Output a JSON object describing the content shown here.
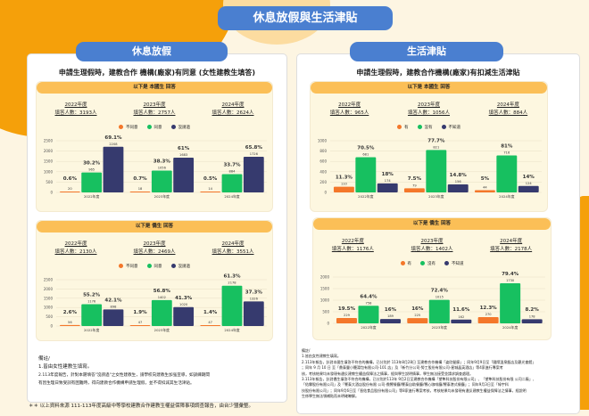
{
  "title": "休息放假與生活津貼",
  "colors": {
    "orange": "#f4772a",
    "green": "#17c060",
    "navy": "#363a6e"
  },
  "left": {
    "section": "休息放假",
    "question": "申請生理假時，建教合作 機構(廠家)有同意 (女性建教生填答)",
    "legend": [
      "不同意",
      "同意",
      "沒請過"
    ]
  },
  "right": {
    "section": "生活津貼",
    "question": "申請生理假時，建教合作機構(廠家)有扣減生活津貼",
    "legend": [
      "有",
      "沒有",
      "不知道"
    ]
  },
  "chart_data": [
    {
      "type": "bar",
      "panel_title": "以下是 本國生 回答",
      "legend": [
        "不同意",
        "同意",
        "沒請過"
      ],
      "ylim": [
        0,
        2500
      ],
      "yticks": [
        "0",
        "500",
        "1000",
        "1500",
        "2000",
        "2500"
      ],
      "groups": [
        {
          "year": "2022年度",
          "respondents": "填答人數：3193人",
          "xlabel": "2022年度",
          "values": [
            20,
            965,
            2208
          ],
          "labels": [
            "20",
            "965",
            "2208"
          ],
          "pcts": [
            "0.6%",
            "30.2%",
            "69.1%"
          ]
        },
        {
          "year": "2023年度",
          "respondents": "填答人數：2757人",
          "xlabel": "2023年度",
          "values": [
            18,
            1056,
            1683
          ],
          "labels": [
            "18",
            "1056",
            "1683"
          ],
          "pcts": [
            "0.7%",
            "38.3%",
            "61%"
          ]
        },
        {
          "year": "2024年度",
          "respondents": "填答人數：2624人",
          "xlabel": "2024年度",
          "values": [
            14,
            884,
            1726
          ],
          "labels": [
            "14",
            "884",
            "1726"
          ],
          "pcts": [
            "0.5%",
            "33.7%",
            "65.8%"
          ]
        }
      ]
    },
    {
      "type": "bar",
      "panel_title": "以下是 僑生 回答",
      "legend": [
        "不同意",
        "同意",
        "沒請過"
      ],
      "ylim": [
        0,
        2500
      ],
      "yticks": [
        "0",
        "500",
        "1000",
        "1500",
        "2000",
        "2500"
      ],
      "groups": [
        {
          "year": "2022年度",
          "respondents": "填答人數：2130人",
          "xlabel": "2022年度",
          "values": [
            56,
            1176,
            898
          ],
          "labels": [
            "56",
            "1176",
            "898"
          ],
          "pcts": [
            "2.6%",
            "55.2%",
            "42.1%"
          ]
        },
        {
          "year": "2023年度",
          "respondents": "填答人數：2469人",
          "xlabel": "2023年度",
          "values": [
            47,
            1402,
            1020
          ],
          "labels": [
            "47",
            "1402",
            "1020"
          ],
          "pcts": [
            "1.9%",
            "56.8%",
            "41.3%"
          ]
        },
        {
          "year": "2024年度",
          "respondents": "填答人數：3551人",
          "xlabel": "2024年度",
          "values": [
            47,
            2178,
            1326
          ],
          "labels": [
            "47",
            "2178",
            "1326"
          ],
          "pcts": [
            "1.4%",
            "61.3%",
            "37.3%"
          ]
        }
      ]
    },
    {
      "type": "bar",
      "panel_title": "以下是 本國生 回答",
      "legend": [
        "有",
        "沒有",
        "不知道"
      ],
      "ylim": [
        0,
        1000
      ],
      "yticks": [
        "0",
        "200",
        "400",
        "600",
        "800",
        "1000"
      ],
      "groups": [
        {
          "year": "2022年度",
          "respondents": "填答人數：965人",
          "xlabel": "2022年度",
          "values": [
            110,
            681,
            174
          ],
          "labels": [
            "110",
            "681",
            "174"
          ],
          "pcts": [
            "11.3%",
            "70.5%",
            "18%"
          ]
        },
        {
          "year": "2023年度",
          "respondents": "填答人數：1056人",
          "xlabel": "2023年度",
          "values": [
            79,
            821,
            156
          ],
          "labels": [
            "79",
            "821",
            "156"
          ],
          "pcts": [
            "7.5%",
            "77.7%",
            "14.8%"
          ]
        },
        {
          "year": "2024年度",
          "respondents": "填答人數：884人",
          "xlabel": "2024年度",
          "values": [
            44,
            716,
            124
          ],
          "labels": [
            "44",
            "716",
            "124"
          ],
          "pcts": [
            "5%",
            "81%",
            "14%"
          ]
        }
      ]
    },
    {
      "type": "bar",
      "panel_title": "以下是 僑生 回答",
      "legend": [
        "有",
        "沒有",
        "不知道"
      ],
      "ylim": [
        0,
        2000
      ],
      "yticks": [
        "0",
        "500",
        "1000",
        "1500",
        "2000"
      ],
      "groups": [
        {
          "year": "2022年度",
          "respondents": "填答人數：1176人",
          "xlabel": "2022年度",
          "values": [
            229,
            758,
            189
          ],
          "labels": [
            "229",
            "758",
            "189"
          ],
          "pcts": [
            "19.5%",
            "64.4%",
            "16%"
          ]
        },
        {
          "year": "2023年度",
          "respondents": "填答人數：1402人",
          "xlabel": "2023年度",
          "values": [
            225,
            1015,
            162
          ],
          "labels": [
            "225",
            "1015",
            "162"
          ],
          "pcts": [
            "16%",
            "72.4%",
            "11.6%"
          ]
        },
        {
          "year": "2024年度",
          "respondents": "填答人數：2178人",
          "xlabel": "2024年度",
          "values": [
            270,
            1730,
            178
          ],
          "labels": [
            "270",
            "1730",
            "178"
          ],
          "pcts": [
            "12.3%",
            "79.4%",
            "8.2%"
          ]
        }
      ]
    }
  ],
  "left_notes": [
    "備註/",
    "1.皆由女性建教生填寫。",
    "2.113年度報告，針對本題填答\"沒請過\"之女性建教生，請學校向建教生加強宣導，如訓練期間",
    "有因生理日致受訓有困難時，得向建教合作機構申請生理假，並不得扣減其生活津貼。"
  ],
  "right_notes": [
    "備註/",
    "1.皆由女性建教生填寫。",
    "2.113年報告，針對本國生填答不符合的機構，已分別於 113年8月28日 至建教合作機構「姿欣髮廊」；同年9月9日至「國際溫泉飯店及觀光會館」",
    "；同年 9 月 10 日 至「鼎泰豐小籠湯包有限公司-101 店」及「新竹分公司-勞工股份有限公司-星城晶英酒店」等4家進行專案考",
    "核，考核結果均未發現有違反建教生權益保障法之情事，經與學生說明情事，學生無法接受並請求調查處理。",
    "3.113年報告，針對僑生填答不符合的機構，已分別於113年 9月2日至建教合作機構「望隼科技股份有限公司」、「望隼科技股份有限 公司二廠」、",
    "「佑霖股份有限公司」及「饗泰大酒店股份有限 公司-鼎饗餐廳/饗泰自助餐廳/饗心咖啡廳/饗泰港式餐廳」；同年9月3日至「綠宇科",
    "技股份有限公司」；同年9月6日至「晉佑食品股份有限公司」等8家進行專案考核，考核結果均未發現有違反建教生權益保障法之情事，經說明",
    "生係學生無法領補貼而未明確瞭解。"
  ],
  "source": "＊＊ 以上資料來源 111-113年度高級中等學校建教合作建教生權益保障事項調查報告，由台少盟彙整。"
}
